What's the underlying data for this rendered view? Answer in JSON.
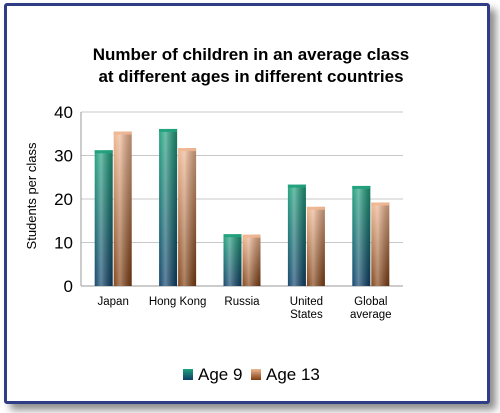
{
  "chart_data": {
    "type": "bar",
    "title": [
      "Number of children in an average class",
      "at different ages in different countries"
    ],
    "ylabel": "Students per class",
    "xlabel": "",
    "ylim": [
      0,
      40
    ],
    "yticks": [
      0,
      10,
      20,
      30,
      40
    ],
    "grid": true,
    "legend_position": "bottom",
    "categories": [
      [
        "Japan"
      ],
      [
        "Hong Kong"
      ],
      [
        "Russia"
      ],
      [
        "United",
        "States"
      ],
      [
        "Global",
        "average"
      ]
    ],
    "series": [
      {
        "name": "Age 9",
        "values": [
          31.2,
          36.1,
          11.9,
          23.3,
          23.0
        ],
        "color_top": "#1fa17c",
        "color_bottom": "#0c3f68"
      },
      {
        "name": "Age 13",
        "values": [
          35.5,
          31.7,
          11.8,
          18.2,
          19.2
        ],
        "color_top": "#efb691",
        "color_bottom": "#7e3d10"
      }
    ]
  }
}
